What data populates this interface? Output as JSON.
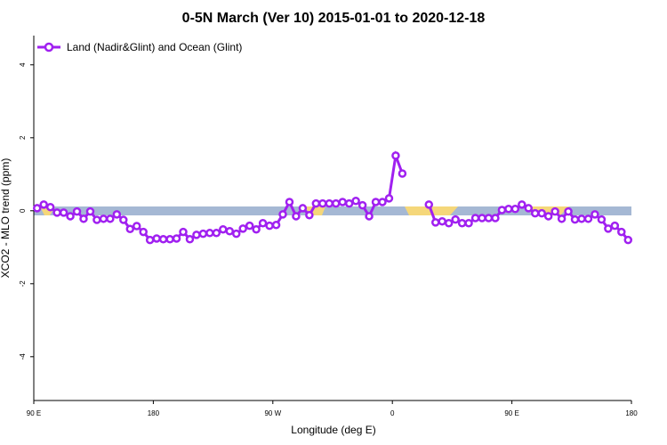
{
  "chart_data": {
    "type": "line",
    "title": "0-5N March (Ver 10)   2015-01-01 to 2020-12-18",
    "x_label": "Longitude (deg E)",
    "y_label": "XCO2 - MLO trend (ppm)",
    "x": [
      92.5,
      97.5,
      102.5,
      107.5,
      112.5,
      117.5,
      122.5,
      127.5,
      132.5,
      137.5,
      142.5,
      147.5,
      152.5,
      157.5,
      162.5,
      167.5,
      172.5,
      177.5,
      182.5,
      187.5,
      192.5,
      197.5,
      202.5,
      207.5,
      212.5,
      217.5,
      222.5,
      227.5,
      232.5,
      237.5,
      242.5,
      247.5,
      252.5,
      257.5,
      262.5,
      267.5,
      272.5,
      277.5,
      282.5,
      287.5,
      292.5,
      297.5,
      302.5,
      307.5,
      312.5,
      317.5,
      322.5,
      327.5,
      332.5,
      337.5,
      342.5,
      347.5,
      352.5,
      357.5,
      362.5,
      367.5,
      372.5,
      377.5,
      382.5,
      387.5,
      392.5,
      397.5,
      402.5,
      407.5,
      412.5,
      417.5,
      422.5,
      427.5,
      432.5,
      437.5,
      442.5,
      447.5,
      452.5,
      457.5,
      462.5,
      467.5,
      472.5,
      477.5,
      482.5,
      487.5,
      492.5,
      497.5,
      502.5,
      507.5,
      512.5,
      517.5,
      522.5,
      527.5,
      532.5,
      537.5
    ],
    "series": [
      {
        "name": "Land (Nadir&Glint) and Ocean (Glint)",
        "color": "#a020f0",
        "values": [
          0.07,
          0.17,
          0.1,
          -0.05,
          -0.05,
          -0.15,
          -0.02,
          -0.22,
          -0.02,
          -0.25,
          -0.22,
          -0.22,
          -0.1,
          -0.25,
          -0.5,
          -0.42,
          -0.58,
          -0.8,
          -0.76,
          -0.78,
          -0.78,
          -0.76,
          -0.58,
          -0.78,
          -0.66,
          -0.63,
          -0.61,
          -0.61,
          -0.51,
          -0.56,
          -0.63,
          -0.49,
          -0.41,
          -0.51,
          -0.34,
          -0.41,
          -0.39,
          -0.1,
          0.24,
          -0.15,
          0.07,
          -0.12,
          0.2,
          0.2,
          0.2,
          0.2,
          0.24,
          0.2,
          0.27,
          0.15,
          -0.15,
          0.24,
          0.24,
          0.34,
          1.51,
          1.02,
          null,
          null,
          null,
          0.17,
          -0.32,
          -0.29,
          -0.34,
          -0.24,
          -0.34,
          -0.34,
          -0.2,
          -0.2,
          -0.2,
          -0.2,
          0.02,
          0.05,
          0.05,
          0.17,
          0.07,
          -0.07,
          -0.07,
          -0.15,
          -0.02,
          -0.22,
          -0.02,
          -0.24,
          -0.22,
          -0.22,
          -0.1,
          -0.24,
          -0.49,
          -0.41,
          -0.58,
          -0.8
        ]
      }
    ],
    "xlim": [
      90,
      540
    ],
    "xticks": [
      {
        "value": 90,
        "label": "90 E"
      },
      180,
      {
        "value": 270,
        "label": "90 W"
      },
      {
        "value": 360,
        "label": "0"
      },
      {
        "value": 450,
        "label": "90 E"
      },
      {
        "value": 540,
        "label": "180"
      }
    ],
    "ylim": [
      -5.2,
      4.8
    ],
    "yticks": [
      -4,
      -2,
      0,
      2,
      4
    ],
    "legend": "top-left"
  }
}
